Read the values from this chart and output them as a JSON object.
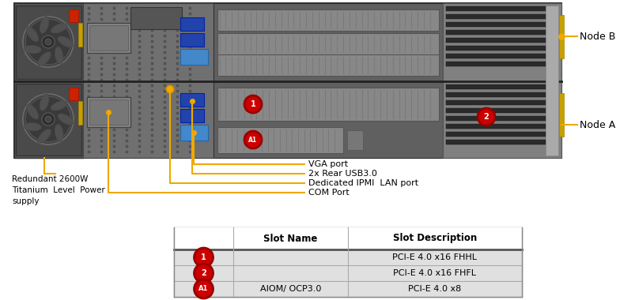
{
  "bg_color": "#ffffff",
  "ann_color": "#F0A800",
  "text_color": "#000000",
  "badge_red": "#cc0000",
  "badge_red_dark": "#990000",
  "node_b_label": "Node B",
  "node_a_label": "Node A",
  "psu_label": "Redundant 2600W\nTitanium  Level  Power\nsupply",
  "anno_labels": [
    "VGA port",
    "2x Rear USB3.0",
    "Dedicated IPMI  LAN port",
    "COM Port"
  ],
  "table_header": [
    "",
    "Slot Name",
    "Slot Description"
  ],
  "table_rows": [
    {
      "badge": "1",
      "slot_name": "",
      "slot_desc": "PCI-E 4.0 x16 FHHL"
    },
    {
      "badge": "2",
      "slot_name": "",
      "slot_desc": "PCI-E 4.0 x16 FHFL"
    },
    {
      "badge": "A1",
      "slot_name": "AIOM/ OCP3.0",
      "slot_desc": "PCI-E 4.0 x8"
    }
  ]
}
